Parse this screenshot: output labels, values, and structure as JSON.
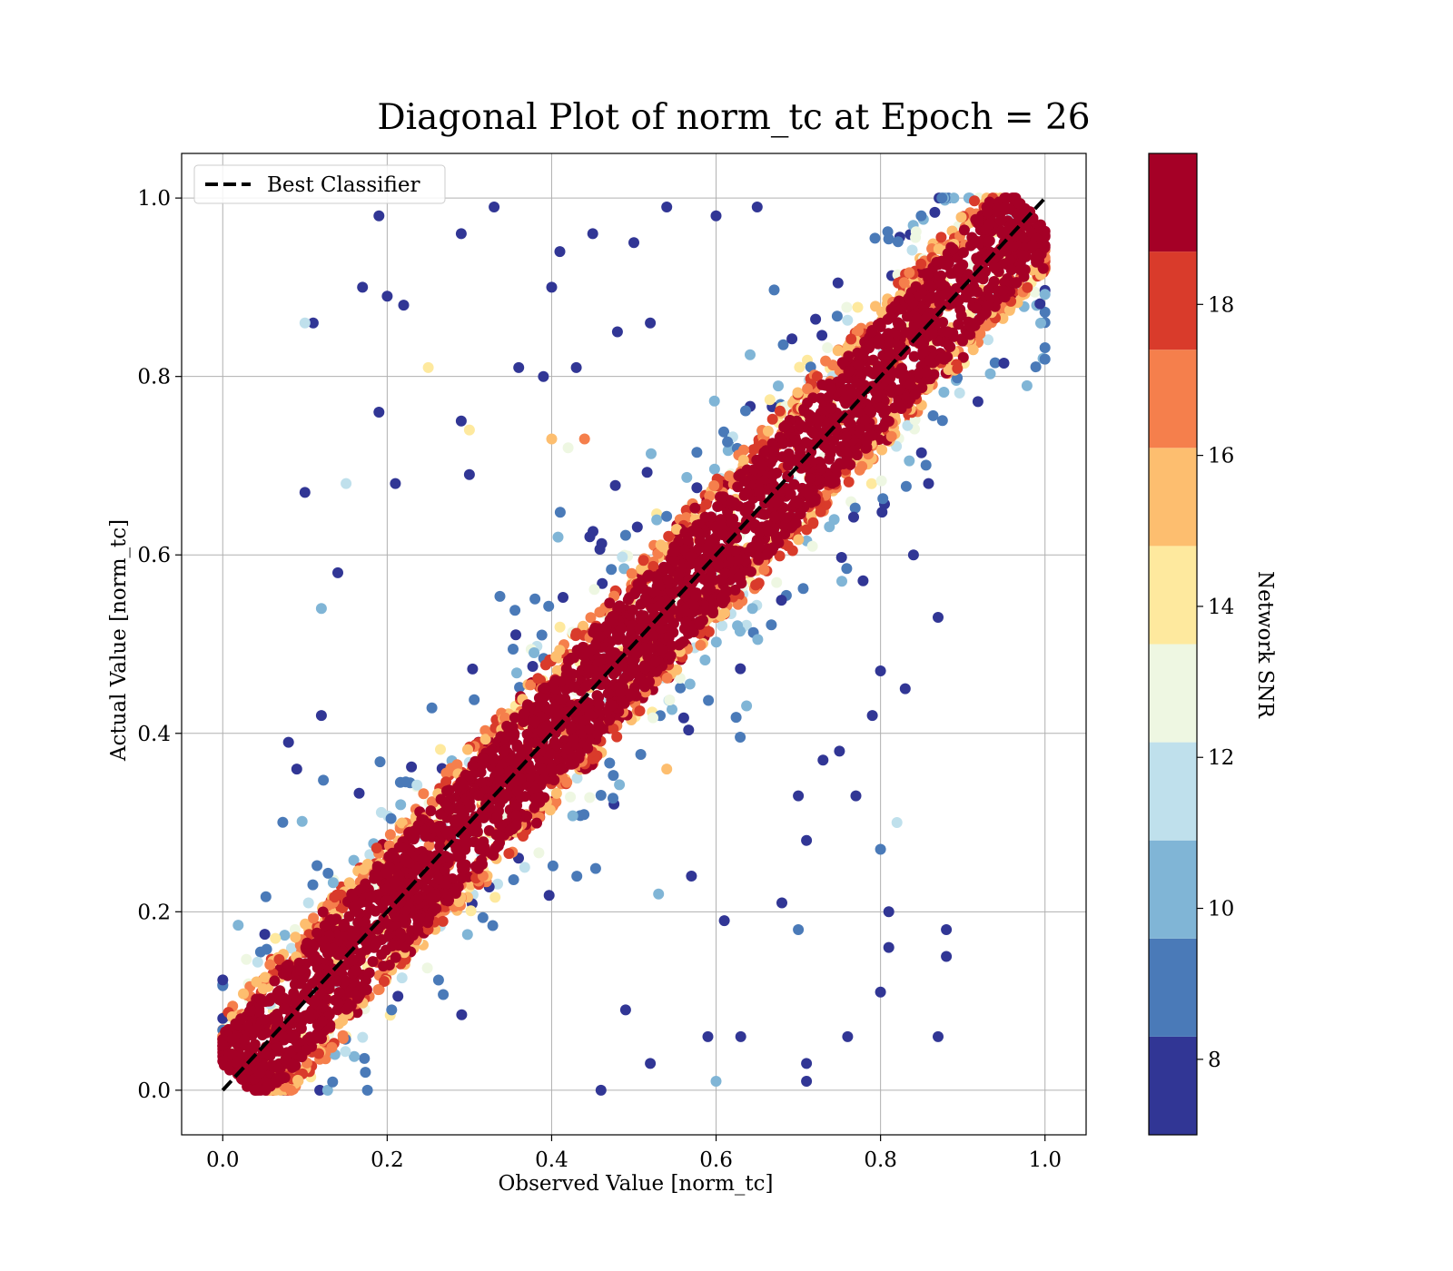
{
  "chart_data": {
    "type": "scatter",
    "title": "Diagonal Plot of norm_tc at Epoch = 26",
    "xlabel": "Observed Value [norm_tc]",
    "ylabel": "Actual Value [norm_tc]",
    "xlim": [
      -0.05,
      1.05
    ],
    "ylim": [
      -0.05,
      1.05
    ],
    "xticks": [
      "0.0",
      "0.2",
      "0.4",
      "0.6",
      "0.8",
      "1.0"
    ],
    "yticks": [
      "0.0",
      "0.2",
      "0.4",
      "0.6",
      "0.8",
      "1.0"
    ],
    "grid": true,
    "legend": {
      "position": "top-left",
      "entries": [
        "Best Classifier"
      ]
    },
    "reference_line": {
      "name": "Best Classifier",
      "style": "dashed",
      "color": "#000000",
      "x": [
        0,
        1
      ],
      "y": [
        0,
        1
      ]
    },
    "colorbar": {
      "label": "Network SNR",
      "range": [
        7,
        20
      ],
      "ticks": [
        "8",
        "10",
        "12",
        "14",
        "16",
        "18"
      ],
      "bins": [
        {
          "from": 7,
          "to": 8.3,
          "color": "#313695"
        },
        {
          "from": 8.3,
          "to": 9.6,
          "color": "#4a7ab8"
        },
        {
          "from": 9.6,
          "to": 10.9,
          "color": "#80b5d6"
        },
        {
          "from": 10.9,
          "to": 12.2,
          "color": "#bfe0ec"
        },
        {
          "from": 12.2,
          "to": 13.5,
          "color": "#eef7e2"
        },
        {
          "from": 13.5,
          "to": 14.8,
          "color": "#fee99e"
        },
        {
          "from": 14.8,
          "to": 16.1,
          "color": "#fdbe6f"
        },
        {
          "from": 16.1,
          "to": 17.4,
          "color": "#f57f4c"
        },
        {
          "from": 17.4,
          "to": 18.7,
          "color": "#d93b2b"
        },
        {
          "from": 18.7,
          "to": 20,
          "color": "#a50026"
        }
      ]
    },
    "points_summary": {
      "core_band_halfwidth": 0.06,
      "core_color_snr": 19.5,
      "outlier_points": [
        {
          "x": 0.19,
          "y": 0.98,
          "snr": 7.5
        },
        {
          "x": 0.29,
          "y": 0.96,
          "snr": 7.5
        },
        {
          "x": 0.33,
          "y": 0.99,
          "snr": 7.5
        },
        {
          "x": 0.11,
          "y": 0.86,
          "snr": 7.5
        },
        {
          "x": 0.17,
          "y": 0.9,
          "snr": 7.5
        },
        {
          "x": 0.2,
          "y": 0.89,
          "snr": 7.5
        },
        {
          "x": 0.22,
          "y": 0.88,
          "snr": 7.5
        },
        {
          "x": 0.1,
          "y": 0.86,
          "snr": 11.5
        },
        {
          "x": 0.25,
          "y": 0.81,
          "snr": 14.5
        },
        {
          "x": 0.1,
          "y": 0.67,
          "snr": 7.5
        },
        {
          "x": 0.15,
          "y": 0.68,
          "snr": 11.5
        },
        {
          "x": 0.19,
          "y": 0.76,
          "snr": 7.5
        },
        {
          "x": 0.21,
          "y": 0.68,
          "snr": 7.5
        },
        {
          "x": 0.14,
          "y": 0.58,
          "snr": 7.5
        },
        {
          "x": 0.12,
          "y": 0.54,
          "snr": 10.5
        },
        {
          "x": 0.08,
          "y": 0.39,
          "snr": 7.5
        },
        {
          "x": 0.09,
          "y": 0.36,
          "snr": 7.5
        },
        {
          "x": 0.12,
          "y": 0.42,
          "snr": 7.5
        },
        {
          "x": 0.83,
          "y": 0.45,
          "snr": 7.5
        },
        {
          "x": 0.87,
          "y": 0.53,
          "snr": 7.5
        },
        {
          "x": 0.84,
          "y": 0.6,
          "snr": 7.5
        },
        {
          "x": 0.8,
          "y": 0.47,
          "snr": 7.5
        },
        {
          "x": 0.79,
          "y": 0.42,
          "snr": 7.5
        },
        {
          "x": 0.82,
          "y": 0.3,
          "snr": 11.5
        },
        {
          "x": 0.8,
          "y": 0.27,
          "snr": 9.5
        },
        {
          "x": 0.75,
          "y": 0.38,
          "snr": 7.5
        },
        {
          "x": 0.77,
          "y": 0.33,
          "snr": 7.5
        },
        {
          "x": 0.81,
          "y": 0.2,
          "snr": 7.5
        },
        {
          "x": 0.81,
          "y": 0.16,
          "snr": 7.5
        },
        {
          "x": 0.88,
          "y": 0.18,
          "snr": 7.5
        },
        {
          "x": 0.88,
          "y": 0.15,
          "snr": 7.5
        },
        {
          "x": 0.87,
          "y": 0.06,
          "snr": 7.5
        },
        {
          "x": 0.8,
          "y": 0.11,
          "snr": 7.5
        },
        {
          "x": 0.71,
          "y": 0.03,
          "snr": 7.5
        },
        {
          "x": 0.71,
          "y": 0.01,
          "snr": 7.5
        },
        {
          "x": 0.76,
          "y": 0.06,
          "snr": 7.5
        },
        {
          "x": 0.6,
          "y": 0.01,
          "snr": 10.5
        },
        {
          "x": 0.46,
          "y": 0.0,
          "snr": 7.5
        },
        {
          "x": 0.49,
          "y": 0.09,
          "snr": 7.5
        },
        {
          "x": 0.52,
          "y": 0.03,
          "snr": 7.5
        },
        {
          "x": 0.59,
          "y": 0.06,
          "snr": 7.5
        },
        {
          "x": 0.63,
          "y": 0.06,
          "snr": 7.5
        },
        {
          "x": 0.68,
          "y": 0.21,
          "snr": 7.5
        },
        {
          "x": 0.7,
          "y": 0.18,
          "snr": 9.5
        },
        {
          "x": 0.71,
          "y": 0.28,
          "snr": 7.5
        },
        {
          "x": 0.61,
          "y": 0.19,
          "snr": 7.5
        },
        {
          "x": 0.57,
          "y": 0.24,
          "snr": 7.5
        },
        {
          "x": 0.53,
          "y": 0.22,
          "snr": 10.5
        },
        {
          "x": 0.54,
          "y": 0.36,
          "snr": 15.5
        },
        {
          "x": 0.73,
          "y": 0.37,
          "snr": 7.5
        },
        {
          "x": 0.7,
          "y": 0.33,
          "snr": 7.5
        },
        {
          "x": 0.41,
          "y": 0.94,
          "snr": 7.5
        },
        {
          "x": 0.45,
          "y": 0.96,
          "snr": 7.5
        },
        {
          "x": 0.5,
          "y": 0.95,
          "snr": 7.5
        },
        {
          "x": 0.54,
          "y": 0.99,
          "snr": 7.5
        },
        {
          "x": 0.6,
          "y": 0.98,
          "snr": 7.5
        },
        {
          "x": 0.65,
          "y": 0.99,
          "snr": 7.5
        },
        {
          "x": 0.48,
          "y": 0.85,
          "snr": 7.5
        },
        {
          "x": 0.52,
          "y": 0.86,
          "snr": 7.5
        },
        {
          "x": 0.4,
          "y": 0.9,
          "snr": 7.5
        },
        {
          "x": 0.36,
          "y": 0.81,
          "snr": 7.5
        },
        {
          "x": 0.39,
          "y": 0.8,
          "snr": 7.5
        },
        {
          "x": 0.43,
          "y": 0.81,
          "snr": 7.5
        },
        {
          "x": 0.4,
          "y": 0.73,
          "snr": 15.5
        },
        {
          "x": 0.42,
          "y": 0.72,
          "snr": 12.5
        },
        {
          "x": 0.44,
          "y": 0.73,
          "snr": 16.5
        },
        {
          "x": 0.3,
          "y": 0.74,
          "snr": 14.5
        },
        {
          "x": 0.29,
          "y": 0.75,
          "snr": 7.5
        },
        {
          "x": 0.3,
          "y": 0.69,
          "snr": 7.5
        }
      ]
    }
  }
}
